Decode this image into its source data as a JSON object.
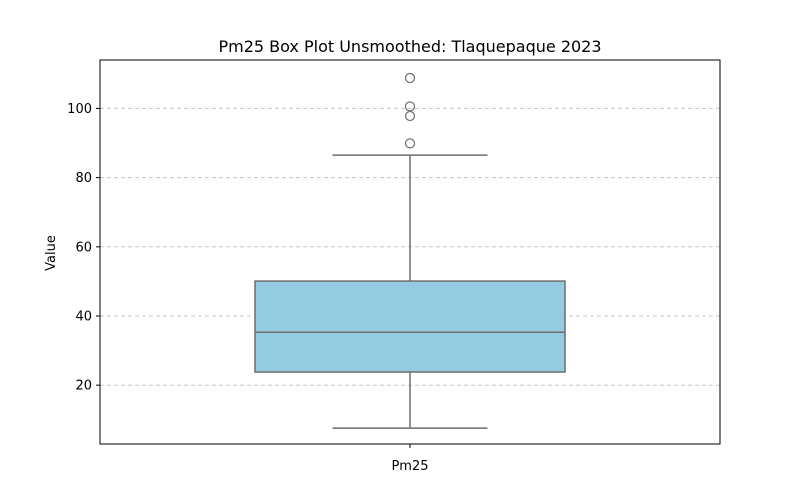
{
  "chart_data": {
    "type": "box",
    "title": "Pm25 Box Plot Unsmoothed: Tlaquepaque 2023",
    "xlabel": "",
    "ylabel": "Value",
    "categories": [
      "Pm25"
    ],
    "ylim": [
      3,
      114
    ],
    "yticks": [
      20,
      40,
      60,
      80,
      100
    ],
    "grid": "y-dashed",
    "boxes": [
      {
        "name": "Pm25",
        "whisker_low": 7.6,
        "q1": 23.8,
        "median": 35.3,
        "q3": 50.1,
        "whisker_high": 86.5,
        "outliers": [
          89.9,
          97.8,
          100.6,
          108.8
        ]
      }
    ],
    "colors": {
      "box_fill": "#95cbe0",
      "box_edge": "#6e6e6e",
      "grid": "#c8c8c8",
      "outlier_edge": "#6e6e6e"
    }
  }
}
